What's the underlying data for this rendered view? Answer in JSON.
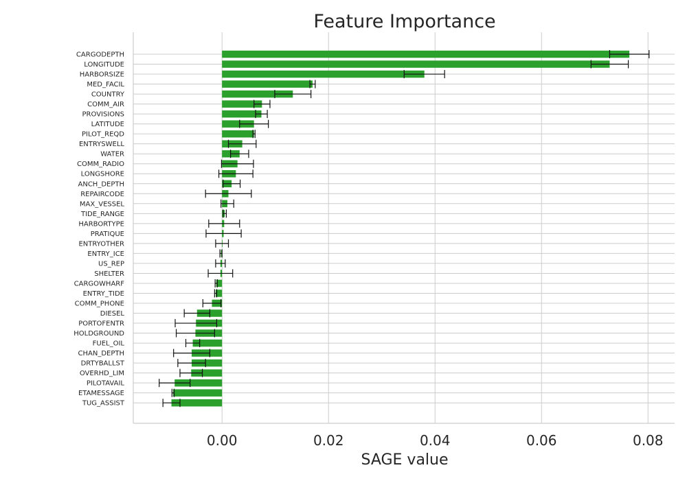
{
  "chart_data": {
    "type": "bar",
    "orientation": "horizontal",
    "title": "Feature Importance",
    "xlabel": "SAGE value",
    "ylabel": "",
    "xlim": [
      -0.01667,
      0.085
    ],
    "xticks": [
      0.0,
      0.02,
      0.04,
      0.06,
      0.08
    ],
    "xtick_labels": [
      "0.00",
      "0.02",
      "0.04",
      "0.06",
      "0.08"
    ],
    "grid": true,
    "bar_color": "#2ca02c",
    "error_color": "#111111",
    "categories": [
      "CARGODEPTH",
      "LONGITUDE",
      "HARBORSIZE",
      "MED_FACIL",
      "COUNTRY",
      "COMM_AIR",
      "PROVISIONS",
      "LATITUDE",
      "PILOT_REQD",
      "ENTRYSWELL",
      "WATER",
      "COMM_RADIO",
      "LONGSHORE",
      "ANCH_DEPTH",
      "REPAIRCODE",
      "MAX_VESSEL",
      "TIDE_RANGE",
      "HARBORTYPE",
      "PRATIQUE",
      "ENTRYOTHER",
      "ENTRY_ICE",
      "US_REP",
      "SHELTER",
      "CARGOWHARF",
      "ENTRY_TIDE",
      "COMM_PHONE",
      "DIESEL",
      "PORTOFENTR",
      "HOLDGROUND",
      "FUEL_OIL",
      "CHAN_DEPTH",
      "DRTYBALLST",
      "OVERHD_LIM",
      "PILOTAVAIL",
      "ETAMESSAGE",
      "TUG_ASSIST"
    ],
    "values": [
      0.0765,
      0.0728,
      0.038,
      0.017,
      0.0133,
      0.0075,
      0.0074,
      0.006,
      0.006,
      0.0038,
      0.0033,
      0.0029,
      0.0026,
      0.0018,
      0.0012,
      0.001,
      0.0005,
      0.0004,
      0.0003,
      0.0,
      -0.0002,
      -0.0003,
      -0.0003,
      -0.0011,
      -0.0012,
      -0.0019,
      -0.0047,
      -0.0049,
      -0.005,
      -0.0055,
      -0.0057,
      -0.0057,
      -0.0058,
      -0.0089,
      -0.0092,
      -0.0095
    ],
    "errors": [
      0.0037,
      0.0035,
      0.0038,
      0.0005,
      0.0034,
      0.0015,
      0.0011,
      0.0027,
      0.0002,
      0.0026,
      0.0017,
      0.003,
      0.0032,
      0.0016,
      0.0043,
      0.0012,
      0.0003,
      0.0029,
      0.0033,
      0.0012,
      0.0002,
      0.0009,
      0.0023,
      0.0002,
      0.0002,
      0.0017,
      0.0024,
      0.0039,
      0.0036,
      0.0013,
      0.0034,
      0.0026,
      0.0021,
      0.0029,
      0.0002,
      0.0016
    ]
  }
}
